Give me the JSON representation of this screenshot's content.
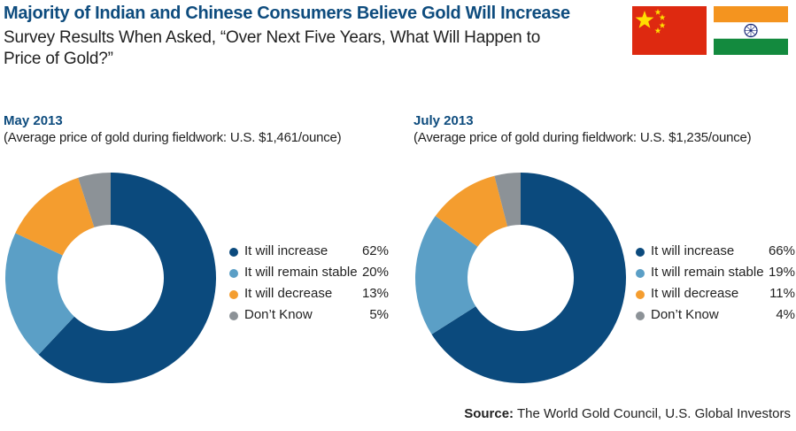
{
  "header": {
    "title": "Majority of Indian and Chinese Consumers Believe Gold Will Increase",
    "subtitle": "Survey Results When Asked, “Over Next Five Years, What Will Happen to Price of Gold?”"
  },
  "source": {
    "label": "Source:",
    "text": "The World Gold Council, U.S. Global Investors"
  },
  "colors": {
    "increase": "#0b4a7d",
    "stable": "#5b9fc6",
    "decrease": "#f49d2f",
    "dont_know": "#8c9297",
    "title_blue": "#0e4c7e"
  },
  "chart_data": [
    {
      "type": "pie",
      "title": "May 2013",
      "subtitle": "(Average price of gold during fieldwork: U.S. $1,461/ounce)",
      "categories": [
        "It will increase",
        "It will remain stable",
        "It will decrease",
        "Don’t Know"
      ],
      "values": [
        62,
        20,
        13,
        5
      ],
      "value_labels": [
        "62%",
        "20%",
        "13%",
        "5%"
      ],
      "colors": [
        "#0b4a7d",
        "#5b9fc6",
        "#f49d2f",
        "#8c9297"
      ],
      "legend_position": "right"
    },
    {
      "type": "pie",
      "title": "July 2013",
      "subtitle": "(Average price of gold during fieldwork: U.S. $1,235/ounce)",
      "categories": [
        "It will increase",
        "It will remain stable",
        "It will decrease",
        "Don’t Know"
      ],
      "values": [
        66,
        19,
        11,
        4
      ],
      "value_labels": [
        "66%",
        "19%",
        "11%",
        "4%"
      ],
      "colors": [
        "#0b4a7d",
        "#5b9fc6",
        "#f49d2f",
        "#8c9297"
      ],
      "legend_position": "right"
    }
  ]
}
